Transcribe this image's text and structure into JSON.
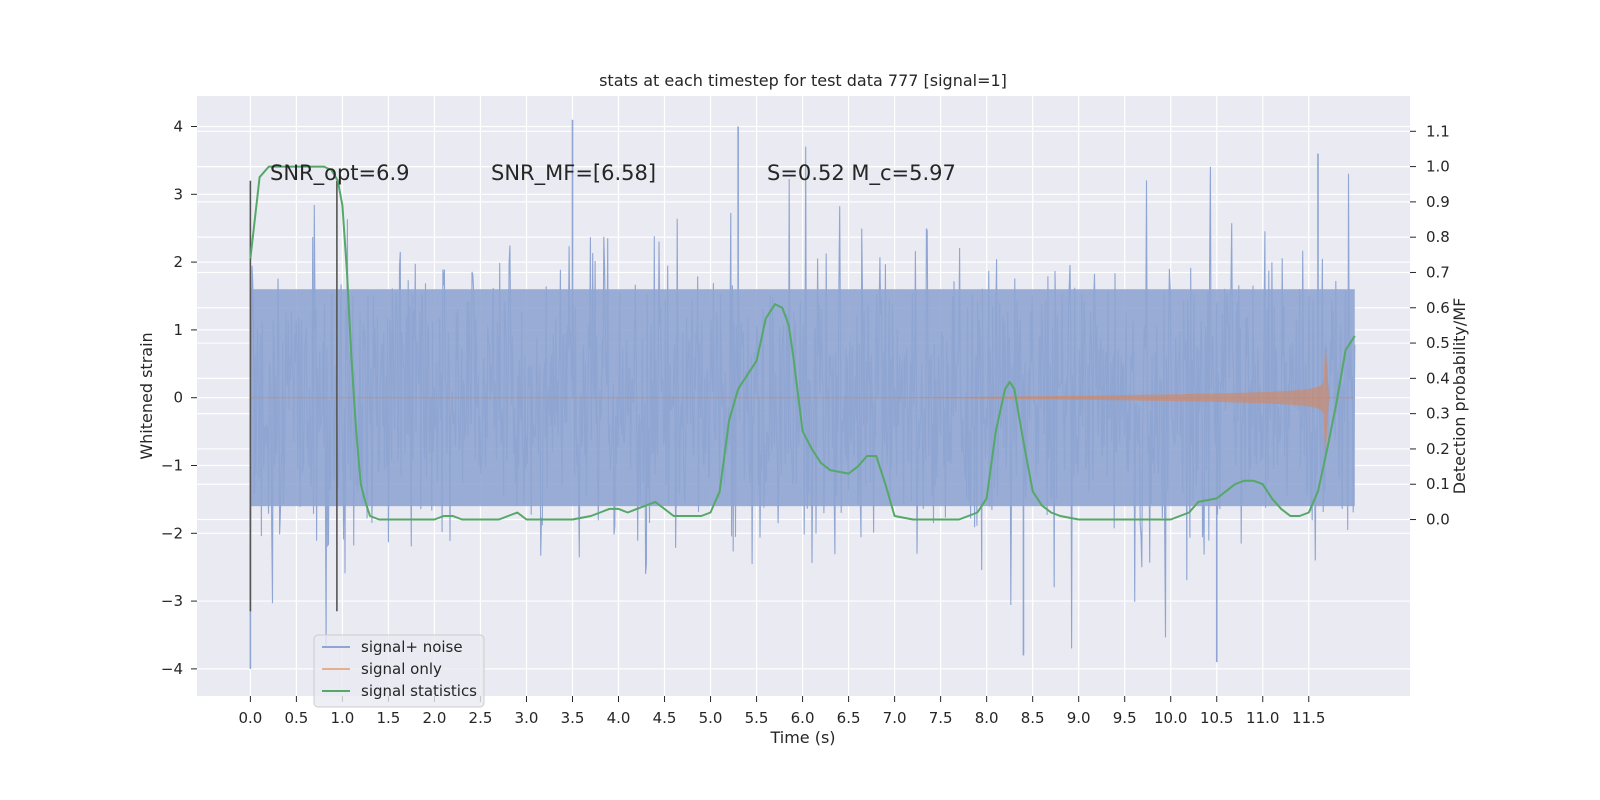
{
  "chart_data": {
    "type": "line",
    "title": "stats at each timestep for test data 777 [signal=1]",
    "xlabel": "Time (s)",
    "ylabel": "Whitened strain",
    "y2label": "Detection probability/MF",
    "xlim": [
      -0.58,
      12.6
    ],
    "ylim": [
      -4.4,
      4.45
    ],
    "y2lim": [
      -0.5,
      1.2
    ],
    "xticks": [
      "0.0",
      "0.5",
      "1.0",
      "1.5",
      "2.0",
      "2.5",
      "3.0",
      "3.5",
      "4.0",
      "4.5",
      "5.0",
      "5.5",
      "6.0",
      "6.5",
      "7.0",
      "7.5",
      "8.0",
      "8.5",
      "9.0",
      "9.5",
      "10.0",
      "10.5",
      "11.0",
      "11.5"
    ],
    "yticks": [
      "4",
      "3",
      "2",
      "1",
      "0",
      "−1",
      "−2",
      "−3",
      "−4"
    ],
    "y2ticks": [
      "1.1",
      "1.0",
      "0.9",
      "0.8",
      "0.7",
      "0.6",
      "0.5",
      "0.4",
      "0.3",
      "0.2",
      "0.1",
      "0.0"
    ],
    "grid": true,
    "legend_position": "lower-left",
    "annotations": [
      {
        "text": "SNR_opt=6.9"
      },
      {
        "text": "SNR_MF=[6.58]"
      },
      {
        "text": "S=0.52   M_c=5.97"
      }
    ],
    "window_markers": [
      0.0,
      0.94
    ],
    "noise": {
      "t_start": 0.0,
      "t_end": 12.0,
      "typical_max": 1.6,
      "typical_min": -1.6,
      "notable_spikes": [
        {
          "t": 0.0,
          "v": -4.0
        },
        {
          "t": 3.5,
          "v": 4.1
        },
        {
          "t": 5.3,
          "v": 4.0
        },
        {
          "t": 11.6,
          "v": 3.6
        },
        {
          "t": 8.4,
          "v": -3.8
        },
        {
          "t": 10.5,
          "v": -3.9
        }
      ]
    },
    "signal_only": {
      "t_start": 7.0,
      "t_merger": 11.68,
      "peak_amplitude": 0.85,
      "trough_amplitude": -0.95
    },
    "series": [
      {
        "name": "signal+ noise",
        "color": "#8fa5d2"
      },
      {
        "name": "signal only",
        "color": "#dd8452"
      },
      {
        "name": "signal statistics",
        "color": "#55a868",
        "x": [
          0.0,
          0.1,
          0.2,
          0.3,
          0.5,
          0.7,
          0.8,
          0.88,
          0.95,
          1.0,
          1.05,
          1.1,
          1.15,
          1.2,
          1.25,
          1.3,
          1.4,
          1.6,
          1.8,
          2.0,
          2.1,
          2.2,
          2.3,
          2.5,
          2.7,
          2.8,
          2.9,
          3.0,
          3.2,
          3.5,
          3.7,
          3.8,
          3.9,
          4.0,
          4.1,
          4.2,
          4.3,
          4.4,
          4.5,
          4.6,
          4.7,
          4.8,
          4.9,
          5.0,
          5.1,
          5.2,
          5.3,
          5.4,
          5.5,
          5.6,
          5.7,
          5.78,
          5.85,
          5.9,
          6.0,
          6.1,
          6.2,
          6.3,
          6.5,
          6.6,
          6.7,
          6.8,
          6.9,
          7.0,
          7.2,
          7.5,
          7.7,
          7.8,
          7.9,
          8.0,
          8.1,
          8.2,
          8.25,
          8.3,
          8.4,
          8.5,
          8.6,
          8.7,
          8.8,
          9.0,
          9.5,
          9.8,
          10.0,
          10.1,
          10.2,
          10.3,
          10.5,
          10.6,
          10.7,
          10.8,
          10.9,
          11.0,
          11.1,
          11.2,
          11.3,
          11.4,
          11.5,
          11.6,
          11.7,
          11.8,
          11.9,
          12.0
        ],
        "y": [
          0.74,
          0.97,
          1.0,
          1.0,
          1.0,
          1.0,
          1.0,
          0.99,
          0.96,
          0.89,
          0.7,
          0.45,
          0.25,
          0.1,
          0.05,
          0.01,
          0.0,
          0.0,
          0.0,
          0.0,
          0.01,
          0.01,
          0.0,
          0.0,
          0.0,
          0.01,
          0.02,
          0.0,
          0.0,
          0.0,
          0.01,
          0.02,
          0.03,
          0.03,
          0.02,
          0.03,
          0.04,
          0.05,
          0.03,
          0.01,
          0.01,
          0.01,
          0.01,
          0.02,
          0.08,
          0.28,
          0.37,
          0.41,
          0.45,
          0.57,
          0.61,
          0.6,
          0.55,
          0.46,
          0.25,
          0.2,
          0.16,
          0.14,
          0.13,
          0.15,
          0.18,
          0.18,
          0.1,
          0.01,
          0.0,
          0.0,
          0.0,
          0.01,
          0.02,
          0.06,
          0.25,
          0.37,
          0.39,
          0.37,
          0.22,
          0.08,
          0.04,
          0.02,
          0.01,
          0.0,
          0.0,
          0.0,
          0.0,
          0.01,
          0.02,
          0.05,
          0.06,
          0.08,
          0.1,
          0.11,
          0.11,
          0.1,
          0.06,
          0.03,
          0.01,
          0.01,
          0.02,
          0.08,
          0.2,
          0.33,
          0.48,
          0.52
        ]
      }
    ]
  }
}
